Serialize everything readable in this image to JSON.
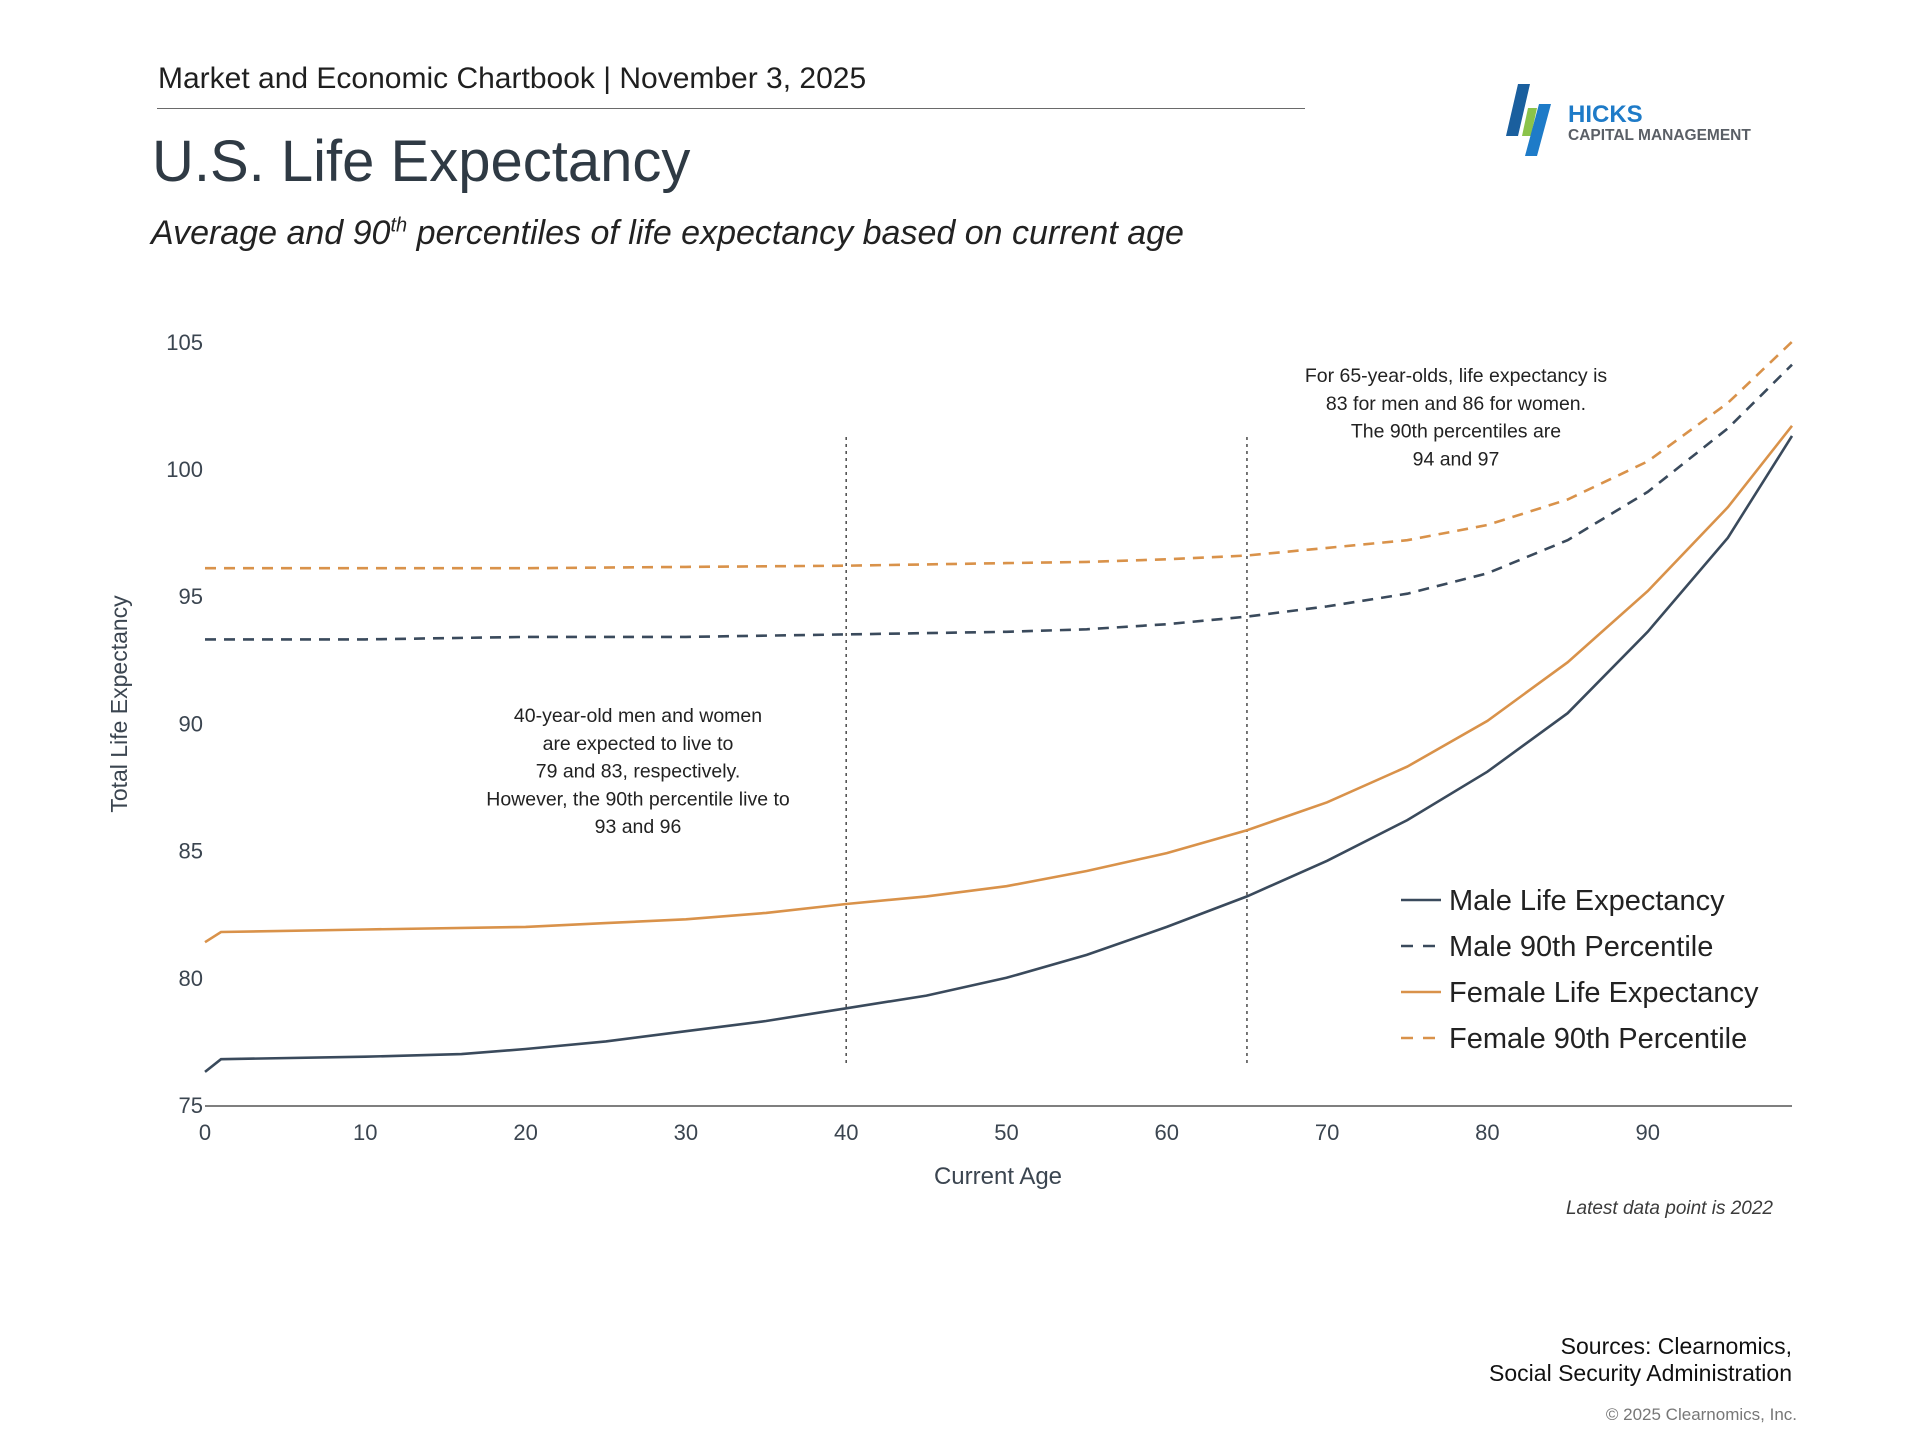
{
  "header": {
    "text": "Market and Economic Chartbook | November 3, 2025"
  },
  "title": "U.S. Life Expectancy",
  "subtitle": {
    "pre": "Average and 90",
    "sup": "th",
    "post": " percentiles of life expectancy based on current age"
  },
  "logo": {
    "name": "HICKS",
    "tagline": "CAPITAL MANAGEMENT",
    "colors": {
      "dark_blue": "#1a5f9e",
      "blue": "#1e7bc8",
      "green": "#8bc34a"
    }
  },
  "chart_data": {
    "type": "line",
    "title": "U.S. Life Expectancy",
    "xlabel": "Current Age",
    "ylabel": "Total Life Expectancy",
    "xlim": [
      0,
      99
    ],
    "ylim": [
      75,
      105
    ],
    "xticks": [
      0,
      10,
      20,
      30,
      40,
      50,
      60,
      70,
      80,
      90
    ],
    "yticks": [
      75,
      80,
      85,
      90,
      95,
      100,
      105
    ],
    "grid": false,
    "legend_position": "bottom-right",
    "vlines": [
      40,
      65
    ],
    "series": [
      {
        "name": "Male Life Expectancy",
        "style": "solid",
        "color": "#3a4a5c",
        "x": [
          0,
          1,
          10,
          16,
          20,
          25,
          30,
          35,
          40,
          45,
          50,
          55,
          60,
          65,
          70,
          75,
          80,
          85,
          90,
          95,
          99
        ],
        "y": [
          76.3,
          76.8,
          76.9,
          77.0,
          77.2,
          77.5,
          77.9,
          78.3,
          78.8,
          79.3,
          80.0,
          80.9,
          82.0,
          83.2,
          84.6,
          86.2,
          88.1,
          90.4,
          93.6,
          97.3,
          101.3
        ]
      },
      {
        "name": "Male 90th Percentile",
        "style": "dashed",
        "color": "#3a4a5c",
        "x": [
          0,
          10,
          20,
          30,
          40,
          50,
          55,
          60,
          65,
          70,
          75,
          80,
          85,
          90,
          95,
          99
        ],
        "y": [
          93.3,
          93.3,
          93.4,
          93.4,
          93.5,
          93.6,
          93.7,
          93.9,
          94.2,
          94.6,
          95.1,
          95.9,
          97.2,
          99.1,
          101.6,
          104.1
        ]
      },
      {
        "name": "Female Life Expectancy",
        "style": "solid",
        "color": "#d9924a",
        "x": [
          0,
          1,
          10,
          20,
          25,
          30,
          35,
          40,
          45,
          50,
          55,
          60,
          65,
          70,
          75,
          80,
          85,
          90,
          95,
          99
        ],
        "y": [
          81.4,
          81.8,
          81.9,
          82.0,
          82.15,
          82.3,
          82.55,
          82.9,
          83.2,
          83.6,
          84.2,
          84.9,
          85.8,
          86.9,
          88.3,
          90.1,
          92.4,
          95.2,
          98.5,
          101.7
        ]
      },
      {
        "name": "Female 90th Percentile",
        "style": "dashed",
        "color": "#d9924a",
        "x": [
          0,
          10,
          20,
          30,
          40,
          50,
          55,
          60,
          65,
          70,
          75,
          80,
          85,
          90,
          95,
          99
        ],
        "y": [
          96.1,
          96.1,
          96.1,
          96.15,
          96.2,
          96.3,
          96.35,
          96.45,
          96.6,
          96.9,
          97.2,
          97.8,
          98.8,
          100.3,
          102.6,
          105.0
        ]
      }
    ],
    "annotations": [
      {
        "lines": [
          "40-year-old men and women",
          "are expected to live to",
          "79 and 83, respectively.",
          "However, the 90th percentile live to",
          "93 and 96"
        ]
      },
      {
        "lines": [
          "For 65-year-olds, life expectancy is",
          "83 for men and 86 for women.",
          "The 90th percentiles are",
          "94 and 97"
        ]
      }
    ]
  },
  "note": "Latest data point is 2022",
  "sources": [
    "Sources: Clearnomics,",
    "Social Security Administration"
  ],
  "copyright": "© 2025 Clearnomics, Inc."
}
